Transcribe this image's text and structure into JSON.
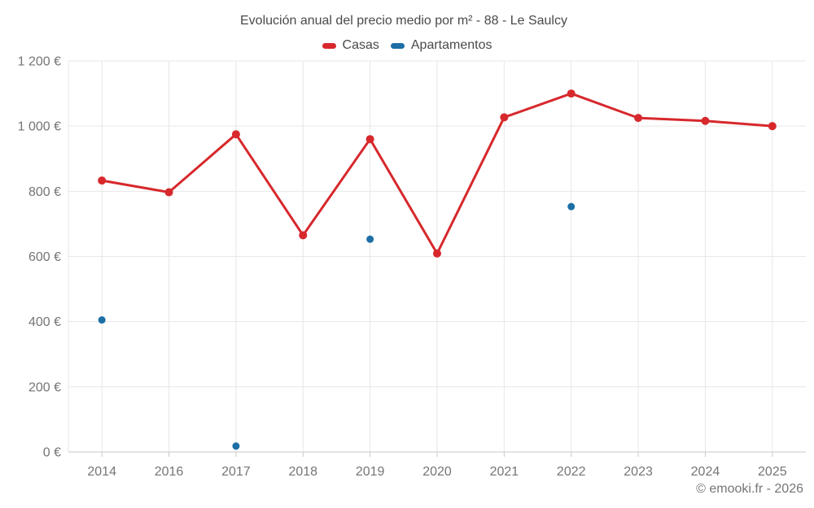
{
  "header": {
    "title": "Evolución anual del precio medio por m² - 88 - Le Saulcy"
  },
  "legend": {
    "items": [
      {
        "id": "casas",
        "label": "Casas",
        "color": "#d7282c"
      },
      {
        "id": "apartamentos",
        "label": "Apartamentos",
        "color": "#1d6fa5"
      }
    ]
  },
  "footer": {
    "credit": "© emooki.fr - 2026"
  },
  "colors": {
    "background": "#ffffff",
    "grid_line": "#e7e7e7",
    "axis_line": "#c9c9c9",
    "tick_label": "#757575",
    "title_text": "#4a4a4a",
    "casas_red": "#d7282c",
    "apartamentos_blue": "#1d6fa5"
  },
  "chart_data": {
    "type": "line",
    "title": "Evolución anual del precio medio por m² - 88 - Le Saulcy",
    "categories": [
      "2014",
      "2016",
      "2017",
      "2018",
      "2019",
      "2020",
      "2021",
      "2022",
      "2023",
      "2024",
      "2025"
    ],
    "series": [
      {
        "name": "Casas",
        "color": "#d7282c",
        "values": [
          833,
          797,
          975,
          665,
          960,
          609,
          1027,
          1100,
          1025,
          1016,
          1000
        ]
      },
      {
        "name": "Apartamentos",
        "color": "#1d6fa5",
        "values": [
          405,
          null,
          18,
          null,
          653,
          null,
          null,
          753,
          null,
          null,
          null
        ]
      }
    ],
    "xlabel": "",
    "ylabel": "",
    "ylim": [
      0,
      1200
    ],
    "ytick_step": 200,
    "ytick_labels": [
      "0 €",
      "200 €",
      "400 €",
      "600 €",
      "800 €",
      "1 000 €",
      "1 200 €"
    ],
    "grid": true,
    "legend_position": "top"
  }
}
